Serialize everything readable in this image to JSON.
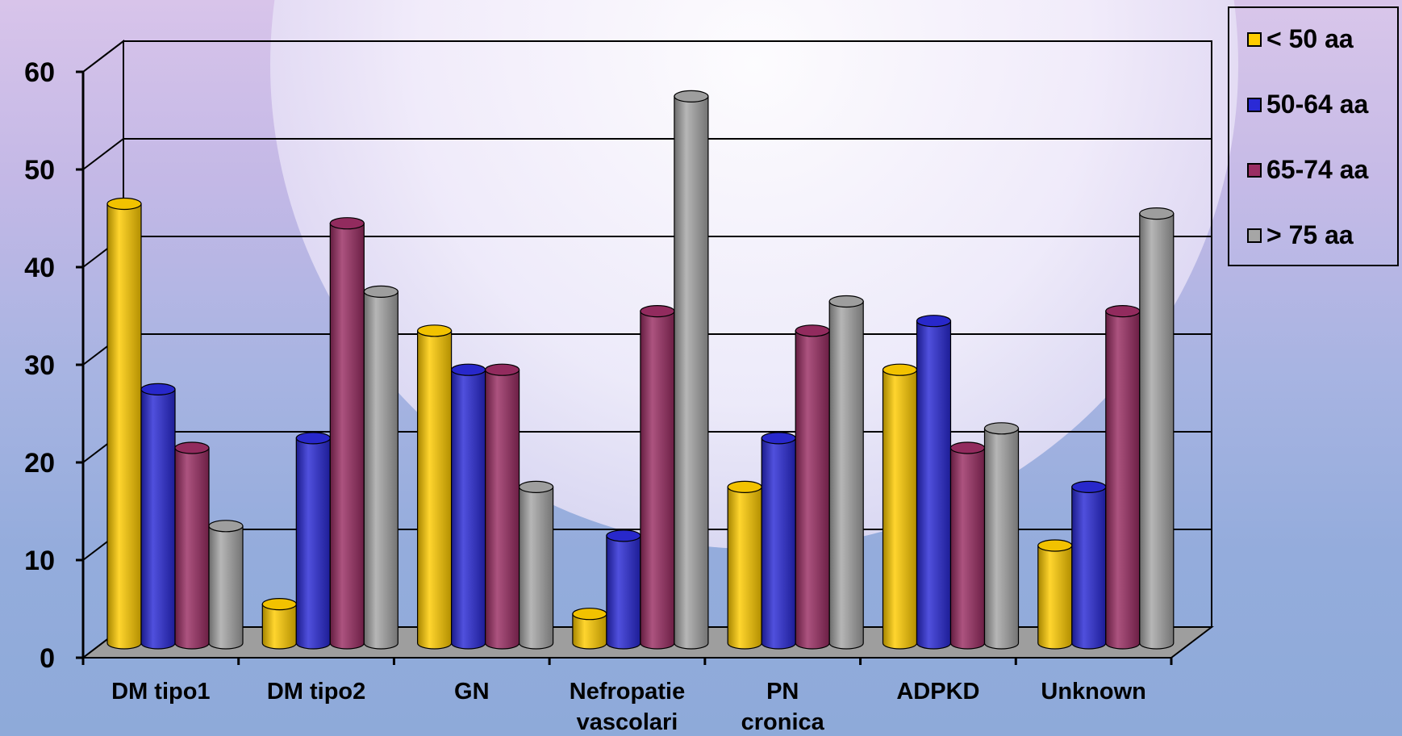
{
  "chart_data": {
    "type": "bar",
    "categories": [
      "DM tipo1",
      "DM tipo2",
      "GN",
      "Nefropatie vascolari",
      "PN cronica",
      "ADPKD",
      "Unknown"
    ],
    "category_lines": [
      [
        "DM tipo1"
      ],
      [
        "DM tipo2"
      ],
      [
        "GN"
      ],
      [
        "Nefropatie",
        "vascolari"
      ],
      [
        "PN",
        "cronica"
      ],
      [
        "ADPKD"
      ],
      [
        "Unknown"
      ]
    ],
    "series": [
      {
        "name": "< 50 aa",
        "color": "#ffcc00",
        "values": [
          45,
          4,
          32,
          3,
          16,
          28,
          10
        ]
      },
      {
        "name": "50-64 aa",
        "color": "#2a2ad6",
        "values": [
          26,
          21,
          28,
          11,
          21,
          33,
          16
        ]
      },
      {
        "name": "65-74 aa",
        "color": "#9a2d63",
        "values": [
          20,
          43,
          28,
          34,
          32,
          20,
          34
        ]
      },
      {
        "name": "> 75 aa",
        "color": "#a6a6a6",
        "values": [
          12,
          36,
          16,
          56,
          35,
          22,
          44
        ]
      }
    ],
    "yticks": [
      0,
      10,
      20,
      30,
      40,
      50,
      60
    ],
    "ylim": [
      0,
      60
    ],
    "grid": true,
    "legend_position": "top-right",
    "style": "3d-cylinder"
  }
}
